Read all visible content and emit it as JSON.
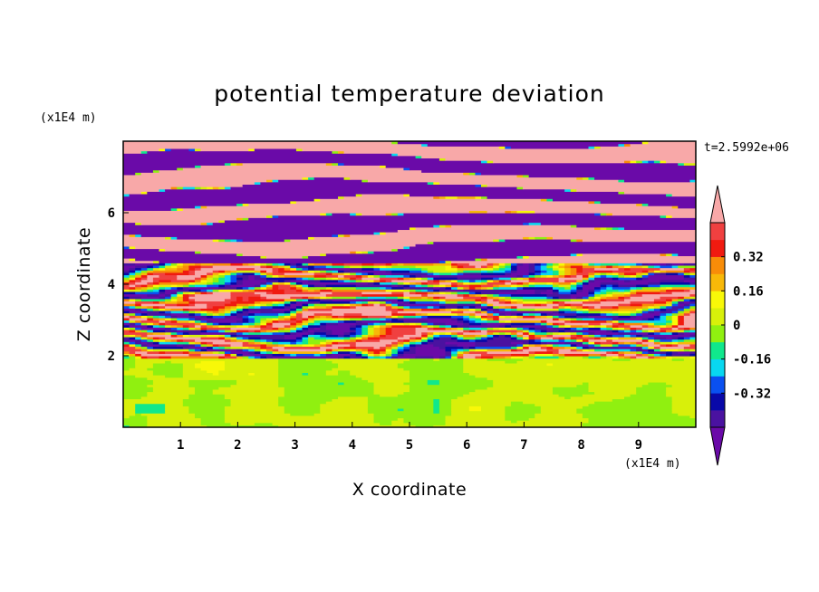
{
  "chart_data": {
    "type": "heatmap",
    "title": "potential temperature deviation",
    "xlabel": "X coordinate",
    "ylabel": "Z coordinate",
    "x_unit": "(x1E4 m)",
    "y_unit": "(x1E4 m)",
    "time_label": "t=2.5992e+06",
    "xlim": [
      0,
      10
    ],
    "ylim": [
      0,
      8
    ],
    "xticks": [
      1,
      2,
      3,
      4,
      5,
      6,
      7,
      8,
      9
    ],
    "yticks": [
      2,
      4,
      6
    ],
    "grid": false,
    "colorbar": {
      "placement": "right",
      "levels": [
        -0.48,
        -0.4,
        -0.32,
        -0.24,
        -0.16,
        -0.08,
        0,
        0.08,
        0.16,
        0.24,
        0.32,
        0.4,
        0.48
      ],
      "tick_values": [
        0.32,
        0.16,
        0,
        -0.16,
        -0.32
      ],
      "tick_labels": [
        "0.32",
        "0.16",
        "0",
        "-0.16",
        "-0.32"
      ],
      "colors": [
        "#6a0aa8",
        "#4a12a0",
        "#0808a8",
        "#0a50f0",
        "#08d8f0",
        "#10e88c",
        "#90f010",
        "#d8f00a",
        "#f8f808",
        "#f8b808",
        "#f88c08",
        "#f01a10",
        "#f04040",
        "#f8a8a8"
      ],
      "extend": "both"
    }
  }
}
